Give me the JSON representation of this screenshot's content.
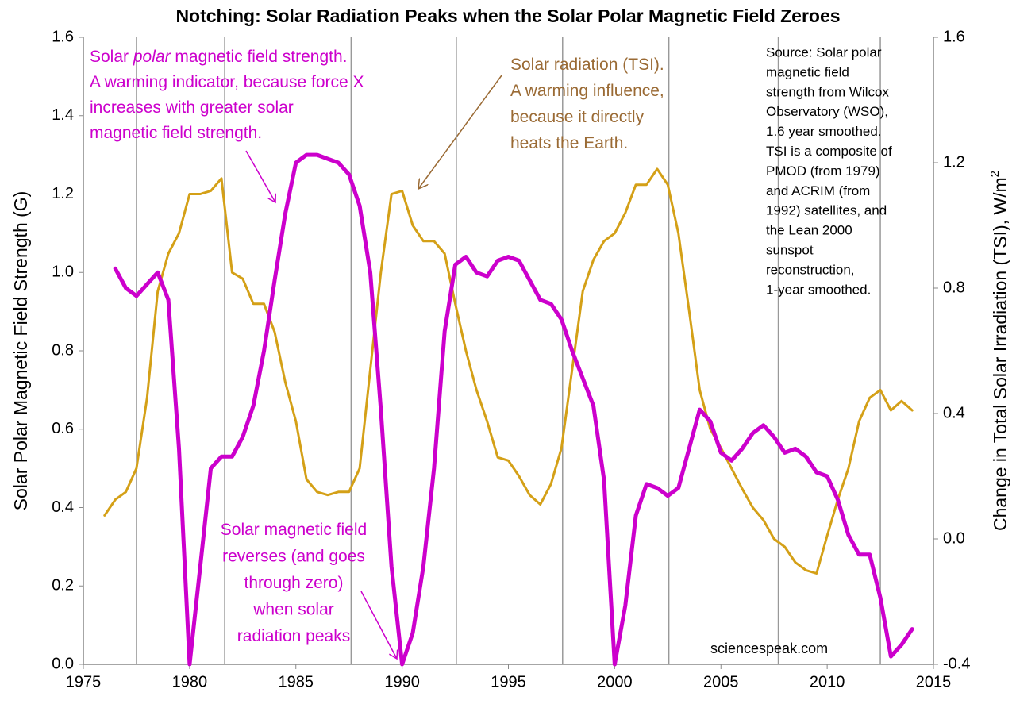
{
  "chart_data": {
    "type": "line",
    "title": "Notching: Solar Radiation Peaks when  the Solar Polar Magnetic Field Zeroes",
    "ylabel": "Solar Polar Magnetic Field Strength (G)",
    "y2label": "Change in Total Solar Irradiation (TSI), W/m",
    "y2label_sup": "2",
    "xlim": [
      1975,
      2015
    ],
    "xticks": [
      1975,
      1980,
      1985,
      1990,
      1995,
      2000,
      2005,
      2010,
      2015
    ],
    "ylim": [
      0,
      1.6
    ],
    "yticks": [
      {
        "value": 0,
        "label": "0.0"
      },
      0.2,
      0.4,
      0.6,
      0.8,
      {
        "value": 1,
        "label": "1.0"
      },
      1.2,
      1.4,
      1.6
    ],
    "y2lim": [
      -0.4,
      1.6
    ],
    "y2ticks": [
      -0.4,
      {
        "value": 0,
        "label": "0.0"
      },
      0.4,
      0.8,
      1.2,
      1.6
    ],
    "vlines": [
      1977.5,
      1981.65,
      1987.6,
      1992.55,
      1997.55,
      2002.55,
      2007.7,
      2012.5
    ],
    "x": [
      1976,
      1976.5,
      1977,
      1977.5,
      1978,
      1978.5,
      1979,
      1979.5,
      1980,
      1980.5,
      1981,
      1981.5,
      1982,
      1982.5,
      1983,
      1983.5,
      1984,
      1984.5,
      1985,
      1985.5,
      1986,
      1986.5,
      1987,
      1987.5,
      1988,
      1988.5,
      1989,
      1989.5,
      1990,
      1990.5,
      1991,
      1991.5,
      1992,
      1992.5,
      1993,
      1993.5,
      1994,
      1994.5,
      1995,
      1995.5,
      1996,
      1996.5,
      1997,
      1997.5,
      1998,
      1998.5,
      1999,
      1999.5,
      2000,
      2000.5,
      2001,
      2001.5,
      2002,
      2002.5,
      2003,
      2003.5,
      2004,
      2004.5,
      2005,
      2005.5,
      2006,
      2006.5,
      2007,
      2007.5,
      2008,
      2008.5,
      2009,
      2009.5,
      2010,
      2010.5,
      2011,
      2011.5,
      2012,
      2012.5,
      2013,
      2013.5,
      2014
    ],
    "series": [
      {
        "color": "#cc00cc",
        "values": [
          null,
          1.01,
          0.96,
          0.94,
          0.97,
          1.0,
          0.93,
          0.55,
          0.0,
          0.25,
          0.5,
          0.53,
          0.53,
          0.58,
          0.66,
          0.8,
          0.98,
          1.15,
          1.28,
          1.3,
          1.3,
          1.29,
          1.28,
          1.25,
          1.17,
          1.0,
          0.65,
          0.25,
          0.0,
          0.08,
          0.25,
          0.5,
          0.85,
          1.02,
          1.04,
          1.0,
          0.99,
          1.03,
          1.04,
          1.03,
          0.98,
          0.93,
          0.92,
          0.88,
          0.8,
          0.73,
          0.66,
          0.47,
          0.0,
          0.15,
          0.38,
          0.46,
          0.45,
          0.43,
          0.45,
          0.55,
          0.65,
          0.62,
          0.54,
          0.52,
          0.55,
          0.59,
          0.61,
          0.58,
          0.54,
          0.55,
          0.53,
          0.49,
          0.48,
          0.42,
          0.33,
          0.28,
          0.28,
          0.17,
          0.02,
          0.05,
          0.09
        ]
      },
      {
        "color": "#d4a017",
        "axis": "y2",
        "values": [
          0.075,
          0.125,
          0.15,
          0.225,
          0.45,
          0.79,
          0.91,
          0.975,
          1.1,
          1.1,
          1.11,
          1.15,
          0.85,
          0.83,
          0.75,
          0.75,
          0.66,
          0.5,
          0.375,
          0.19,
          0.15,
          0.14,
          0.15,
          0.15,
          0.225,
          0.54,
          0.85,
          1.1,
          1.11,
          1.0,
          0.95,
          0.95,
          0.91,
          0.75,
          0.6,
          0.475,
          0.375,
          0.26,
          0.25,
          0.2,
          0.14,
          0.11,
          0.175,
          0.29,
          0.54,
          0.79,
          0.89,
          0.95,
          0.975,
          1.04,
          1.13,
          1.13,
          1.18,
          1.13,
          0.975,
          0.73,
          0.475,
          0.35,
          0.29,
          0.225,
          0.16,
          0.1,
          0.06,
          0.0,
          -0.025,
          -0.075,
          -0.1,
          -0.11,
          0.01,
          0.125,
          0.225,
          0.375,
          0.45,
          0.475,
          0.41,
          0.44,
          0.41
        ]
      }
    ],
    "annotations": [
      {
        "color": "#cc00cc",
        "lines": [
          [
            "Solar ",
            "polar",
            " magnetic field strength."
          ],
          [
            "A warming indicator, because force X"
          ],
          [
            "increases with greater solar"
          ],
          [
            "magnetic field strength."
          ]
        ]
      },
      {
        "color": "#9a6a34",
        "lines": [
          [
            "Solar radiation (TSI)."
          ],
          [
            "A warming influence,"
          ],
          [
            "because it  directly"
          ],
          [
            "heats the Earth."
          ]
        ]
      },
      {
        "color": "#cc00cc",
        "lines": [
          [
            "Solar magnetic field"
          ],
          [
            "reverses (and goes"
          ],
          [
            "through zero)"
          ],
          [
            "when solar"
          ],
          [
            "radiation peaks"
          ]
        ]
      }
    ],
    "source": [
      "Source: Solar polar",
      "magnetic field",
      "strength from Wilcox",
      "Observatory (WSO),",
      "1.6 year smoothed.",
      "TSI is a composite of",
      "PMOD (from 1979)",
      "and ACRIM (from",
      "1992) satellites, and",
      "the Lean 2000",
      "sunspot",
      "reconstruction,",
      "1-year smoothed."
    ],
    "watermark": "sciencespeak.com"
  }
}
